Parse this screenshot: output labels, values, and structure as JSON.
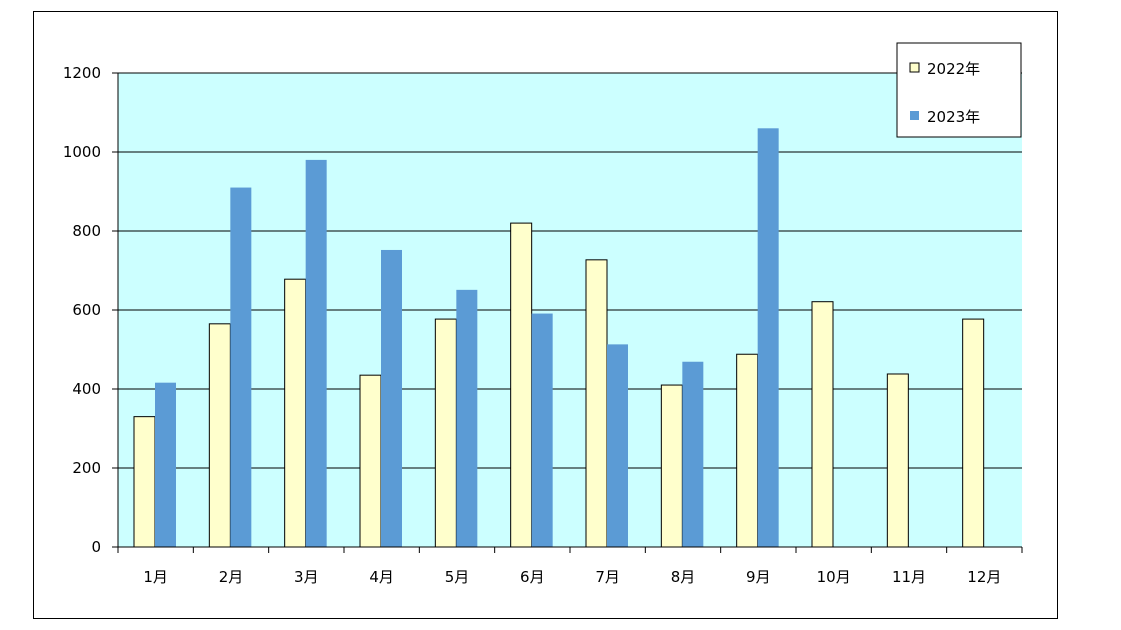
{
  "chart_data": {
    "type": "bar",
    "categories": [
      "1月",
      "2月",
      "3月",
      "4月",
      "5月",
      "6月",
      "7月",
      "8月",
      "9月",
      "10月",
      "11月",
      "12月"
    ],
    "series": [
      {
        "name": "2022年",
        "color": "#ffffcc",
        "values": [
          330,
          565,
          678,
          435,
          577,
          820,
          727,
          410,
          488,
          621,
          438,
          577
        ]
      },
      {
        "name": "2023年",
        "color": "#5b9bd5",
        "values": [
          416,
          910,
          980,
          752,
          651,
          591,
          513,
          469,
          1060,
          null,
          null,
          null
        ]
      }
    ],
    "ylim": [
      0,
      1200
    ],
    "yticks": [
      0,
      200,
      400,
      600,
      800,
      1000,
      1200
    ],
    "grid": true,
    "plot_background": "#ccffff",
    "legend_position": "top-right"
  }
}
